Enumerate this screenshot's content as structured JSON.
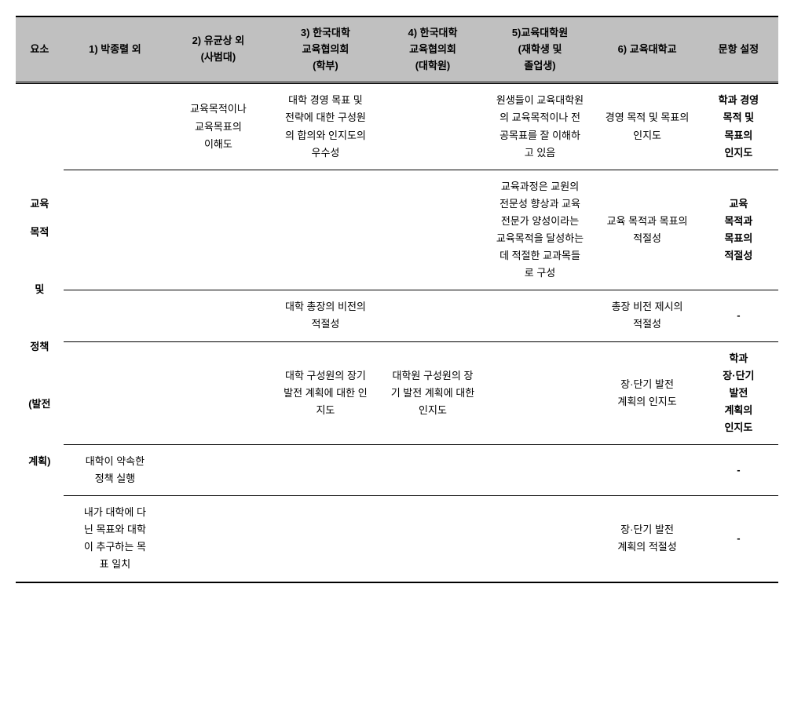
{
  "header": {
    "col0": "요소",
    "col1": "1) 박종렬 외",
    "col2": "2) 유균상 외\n(사범대)",
    "col3": "3) 한국대학\n교육협의회\n(학부)",
    "col4": "4) 한국대학\n교육협의회\n(대학원)",
    "col5": "5)교육대학원\n(재학생 및\n졸업생)",
    "col6": "6) 교육대학교",
    "col7": "문항 설정"
  },
  "rowhead": "교육\n목적\n\n및\n\n정책\n\n(발전\n\n계획)",
  "rows": [
    {
      "c1": "",
      "c2": "교육목적이나\n교육목표의\n이해도",
      "c3": "대학 경영 목표 및\n전략에 대한 구성원\n의 합의와 인지도의\n우수성",
      "c4": "",
      "c5": "원생들이 교육대학원\n의 교육목적이나 전\n공목표를 잘 이해하\n고 있음",
      "c6": "경영 목적 및 목표의\n인지도",
      "c7": "학과 경영\n목적 및\n목표의\n인지도",
      "c7bold": true
    },
    {
      "c1": "",
      "c2": "",
      "c3": "",
      "c4": "",
      "c5": "교육과정은 교원의\n전문성 향상과 교육\n전문가 양성이라는\n교육목적을 달성하는\n데 적절한 교과목들\n로 구성",
      "c6": "교육 목적과 목표의\n적절성",
      "c7": "교육\n목적과\n목표의\n적절성",
      "c7bold": true
    },
    {
      "c1": "",
      "c2": "",
      "c3": "대학 총장의 비전의\n적절성",
      "c4": "",
      "c5": "",
      "c6": "총장 비전 제시의\n적절성",
      "c7": "-",
      "c7bold": true
    },
    {
      "c1": "",
      "c2": "",
      "c3": "대학 구성원의 장기\n발전 계획에 대한 인\n지도",
      "c4": "대학원 구성원의 장\n기 발전 계획에 대한\n인지도",
      "c5": "",
      "c6": "장·단기 발전\n계획의 인지도",
      "c7": "학과\n장·단기\n발전\n계획의\n인지도",
      "c7bold": true
    },
    {
      "c1": "대학이 약속한\n정책 실행",
      "c2": "",
      "c3": "",
      "c4": "",
      "c5": "",
      "c6": "",
      "c7": "-",
      "c7bold": true
    },
    {
      "c1": "내가 대학에 다\n닌 목표와 대학\n이 추구하는 목\n표 일치",
      "c2": "",
      "c3": "",
      "c4": "",
      "c5": "",
      "c6": "장·단기 발전\n계획의 적절성",
      "c7": "-",
      "c7bold": true
    }
  ]
}
